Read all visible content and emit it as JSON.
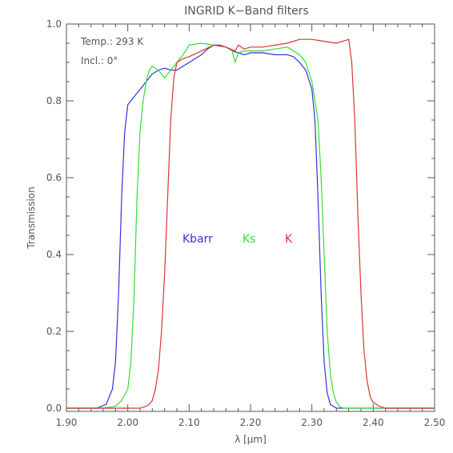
{
  "chart_data": {
    "type": "line",
    "title": "INGRID K−Band filters",
    "xlabel": "λ [μm]",
    "ylabel": "Transmission",
    "xlim": [
      1.9,
      2.5
    ],
    "ylim": [
      0.0,
      1.0
    ],
    "x_ticks": [
      "1.90",
      "2.00",
      "2.10",
      "2.20",
      "2.30",
      "2.40",
      "2.50"
    ],
    "y_ticks": [
      "0.0",
      "0.2",
      "0.4",
      "0.6",
      "0.8",
      "1.0"
    ],
    "annotations": [
      "Temp.: 293 K",
      "Incl.: 0°"
    ],
    "legend_placement": "center",
    "grid": false,
    "series": [
      {
        "name": "Kbarr",
        "color": "#3333dd",
        "x": [
          1.9,
          1.95,
          1.965,
          1.975,
          1.98,
          1.985,
          1.99,
          1.995,
          2.0,
          2.01,
          2.02,
          2.03,
          2.04,
          2.05,
          2.06,
          2.07,
          2.08,
          2.09,
          2.1,
          2.11,
          2.12,
          2.13,
          2.14,
          2.15,
          2.16,
          2.17,
          2.18,
          2.19,
          2.2,
          2.22,
          2.24,
          2.26,
          2.27,
          2.28,
          2.29,
          2.3,
          2.305,
          2.31,
          2.315,
          2.32,
          2.325,
          2.33,
          2.335,
          2.34,
          2.36,
          2.4,
          2.45,
          2.5
        ],
        "y": [
          0.0,
          0.0,
          0.01,
          0.05,
          0.12,
          0.3,
          0.55,
          0.72,
          0.79,
          0.81,
          0.83,
          0.85,
          0.87,
          0.88,
          0.885,
          0.88,
          0.88,
          0.89,
          0.9,
          0.91,
          0.92,
          0.935,
          0.945,
          0.945,
          0.94,
          0.93,
          0.925,
          0.92,
          0.925,
          0.925,
          0.92,
          0.92,
          0.915,
          0.9,
          0.88,
          0.83,
          0.75,
          0.55,
          0.3,
          0.12,
          0.04,
          0.01,
          0.005,
          0.0,
          0.0,
          0.0,
          0.0,
          0.0
        ]
      },
      {
        "name": "Ks",
        "color": "#33dd33",
        "x": [
          1.9,
          1.96,
          1.98,
          1.99,
          2.0,
          2.005,
          2.01,
          2.015,
          2.02,
          2.025,
          2.03,
          2.035,
          2.04,
          2.05,
          2.06,
          2.07,
          2.08,
          2.09,
          2.1,
          2.12,
          2.14,
          2.16,
          2.17,
          2.175,
          2.18,
          2.19,
          2.2,
          2.22,
          2.24,
          2.26,
          2.27,
          2.28,
          2.29,
          2.3,
          2.31,
          2.315,
          2.32,
          2.325,
          2.33,
          2.335,
          2.34,
          2.345,
          2.35,
          2.36,
          2.38,
          2.4,
          2.45,
          2.5
        ],
        "y": [
          0.0,
          0.0,
          0.005,
          0.02,
          0.05,
          0.12,
          0.28,
          0.55,
          0.72,
          0.8,
          0.85,
          0.88,
          0.89,
          0.88,
          0.86,
          0.88,
          0.9,
          0.92,
          0.945,
          0.95,
          0.945,
          0.94,
          0.93,
          0.9,
          0.925,
          0.93,
          0.93,
          0.93,
          0.935,
          0.94,
          0.93,
          0.92,
          0.9,
          0.85,
          0.75,
          0.6,
          0.4,
          0.2,
          0.09,
          0.04,
          0.015,
          0.005,
          0.0,
          0.0,
          0.0,
          0.0,
          0.0,
          0.0
        ]
      },
      {
        "name": "K",
        "color": "#dd3333",
        "x": [
          1.9,
          2.0,
          2.02,
          2.03,
          2.035,
          2.04,
          2.045,
          2.05,
          2.055,
          2.06,
          2.065,
          2.07,
          2.075,
          2.08,
          2.09,
          2.1,
          2.12,
          2.14,
          2.16,
          2.175,
          2.18,
          2.19,
          2.2,
          2.22,
          2.24,
          2.26,
          2.28,
          2.3,
          2.32,
          2.34,
          2.35,
          2.36,
          2.365,
          2.37,
          2.375,
          2.38,
          2.385,
          2.39,
          2.395,
          2.4,
          2.41,
          2.42,
          2.45,
          2.5
        ],
        "y": [
          0.0,
          0.0,
          0.0,
          0.005,
          0.01,
          0.02,
          0.05,
          0.1,
          0.2,
          0.35,
          0.55,
          0.75,
          0.86,
          0.9,
          0.91,
          0.915,
          0.93,
          0.945,
          0.94,
          0.93,
          0.945,
          0.935,
          0.94,
          0.94,
          0.945,
          0.95,
          0.96,
          0.96,
          0.955,
          0.95,
          0.955,
          0.96,
          0.9,
          0.75,
          0.5,
          0.3,
          0.15,
          0.07,
          0.03,
          0.015,
          0.005,
          0.0,
          0.0,
          0.0
        ]
      }
    ]
  }
}
